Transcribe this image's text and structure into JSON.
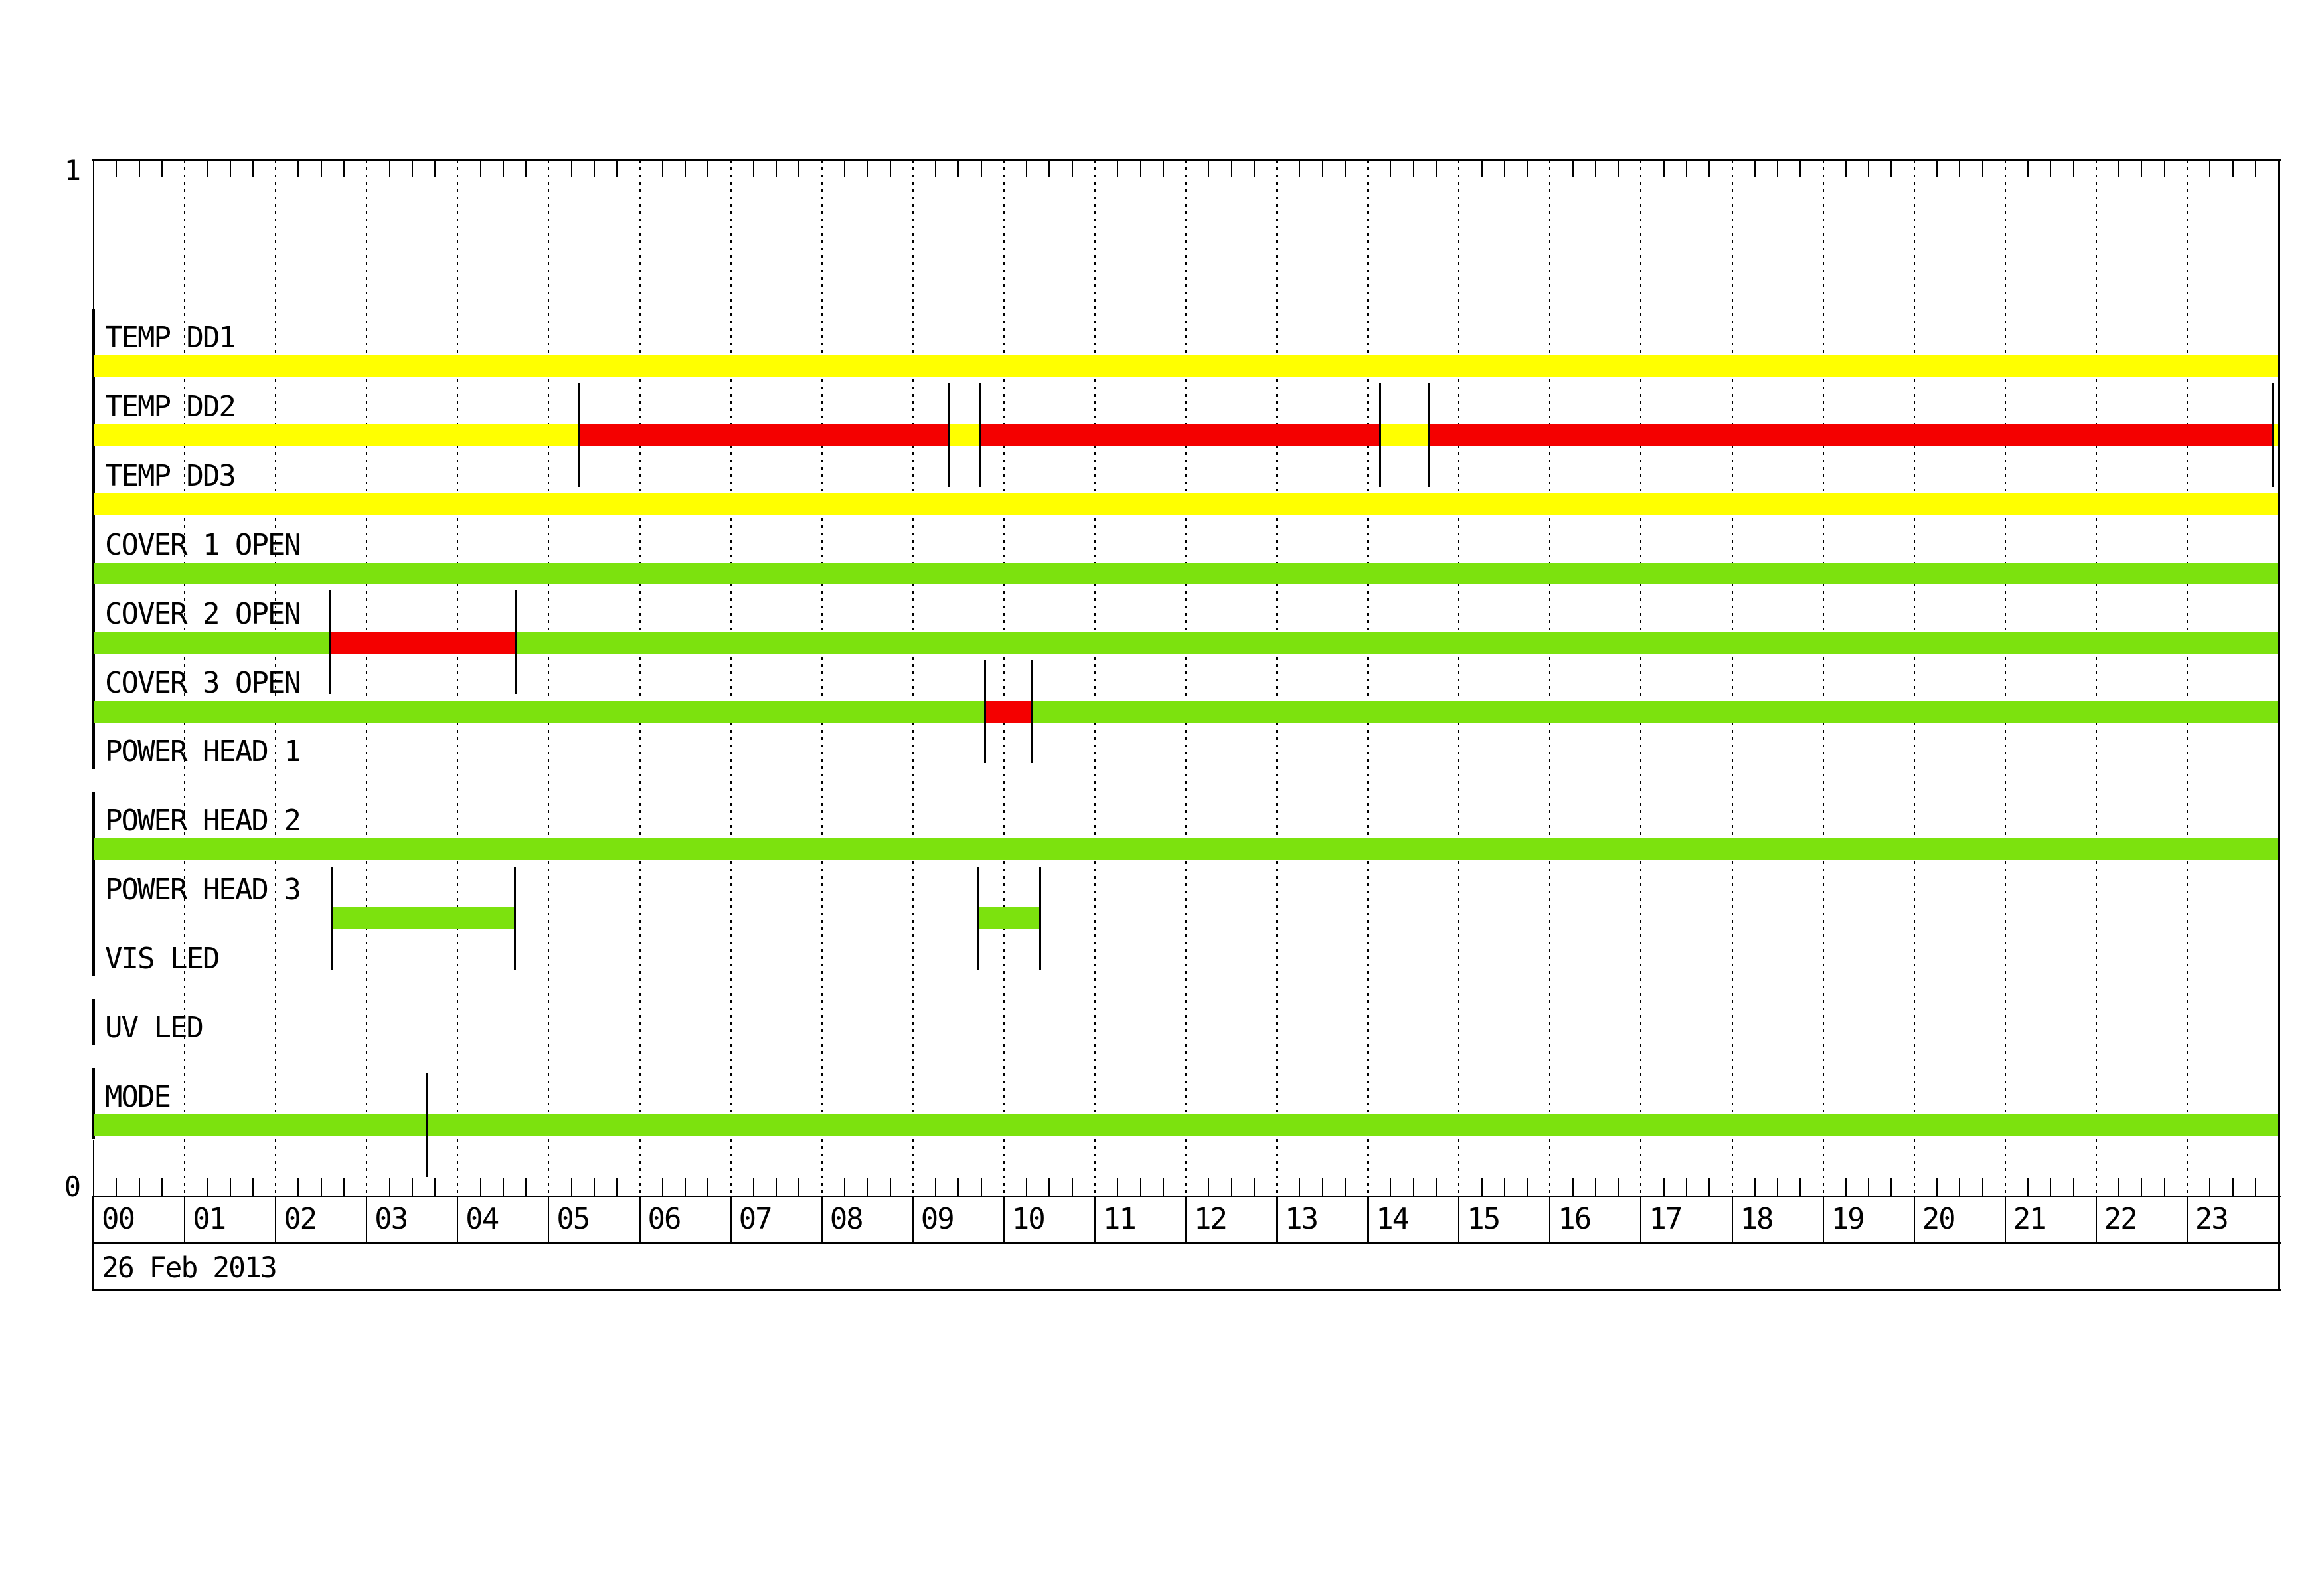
{
  "chart_data": {
    "type": "timeline",
    "description": "Daily instrument status timeline, 24-hour x-axis",
    "date_label": "26 Feb 2013",
    "y_axis": {
      "top_label": "1",
      "bottom_label": "0"
    },
    "x_axis": {
      "xlim_hours": [
        0,
        24
      ],
      "hour_labels": [
        "00",
        "01",
        "02",
        "03",
        "04",
        "05",
        "06",
        "07",
        "08",
        "09",
        "10",
        "11",
        "12",
        "13",
        "14",
        "15",
        "16",
        "17",
        "18",
        "19",
        "20",
        "21",
        "22",
        "23"
      ],
      "minor_tick_minutes": 15,
      "gridlines": "dotted-hourly"
    },
    "colors": {
      "yellow": "#FFFF00",
      "green": "#7CE20E",
      "red": "#F40000",
      "marker": "#000000"
    },
    "rows": [
      {
        "label": "TEMP DD1",
        "segments": [
          {
            "start": 0,
            "end": 24,
            "color": "yellow"
          }
        ],
        "markers": []
      },
      {
        "label": "TEMP DD2",
        "segments": [
          {
            "start": 0,
            "end": 5.333,
            "color": "yellow"
          },
          {
            "start": 5.333,
            "end": 9.4,
            "color": "red"
          },
          {
            "start": 9.4,
            "end": 9.733,
            "color": "yellow"
          },
          {
            "start": 9.733,
            "end": 14.133,
            "color": "red"
          },
          {
            "start": 14.133,
            "end": 14.667,
            "color": "yellow"
          },
          {
            "start": 14.667,
            "end": 23.94,
            "color": "red"
          },
          {
            "start": 23.94,
            "end": 24,
            "color": "yellow"
          }
        ],
        "markers": [
          5.333,
          9.4,
          9.733,
          14.133,
          14.667,
          23.94
        ]
      },
      {
        "label": "TEMP DD3",
        "segments": [
          {
            "start": 0,
            "end": 24,
            "color": "yellow"
          }
        ],
        "markers": []
      },
      {
        "label": "COVER 1 OPEN",
        "segments": [
          {
            "start": 0,
            "end": 24,
            "color": "green"
          }
        ],
        "markers": []
      },
      {
        "label": "COVER 2 OPEN",
        "segments": [
          {
            "start": 0,
            "end": 2.6,
            "color": "green"
          },
          {
            "start": 2.6,
            "end": 4.64,
            "color": "red"
          },
          {
            "start": 4.64,
            "end": 24,
            "color": "green"
          }
        ],
        "markers": [
          2.6,
          4.64
        ]
      },
      {
        "label": "COVER 3 OPEN",
        "segments": [
          {
            "start": 0,
            "end": 9.79,
            "color": "green"
          },
          {
            "start": 9.79,
            "end": 10.31,
            "color": "red"
          },
          {
            "start": 10.31,
            "end": 24,
            "color": "green"
          }
        ],
        "markers": [
          9.79,
          10.31
        ]
      },
      {
        "label": "POWER HEAD 1",
        "segments": [],
        "markers": []
      },
      {
        "label": "POWER HEAD 2",
        "segments": [
          {
            "start": 0,
            "end": 24,
            "color": "green"
          }
        ],
        "markers": []
      },
      {
        "label": "POWER HEAD 3",
        "segments": [
          {
            "start": 2.62,
            "end": 4.63,
            "color": "green"
          },
          {
            "start": 9.72,
            "end": 10.4,
            "color": "green"
          }
        ],
        "markers": [
          2.62,
          4.63,
          9.72,
          10.4
        ]
      },
      {
        "label": "VIS LED",
        "segments": [],
        "markers": []
      },
      {
        "label": "UV LED",
        "segments": [],
        "markers": []
      },
      {
        "label": "MODE",
        "segments": [
          {
            "start": 0,
            "end": 24,
            "color": "green"
          }
        ],
        "markers": [
          3.66
        ]
      }
    ]
  }
}
